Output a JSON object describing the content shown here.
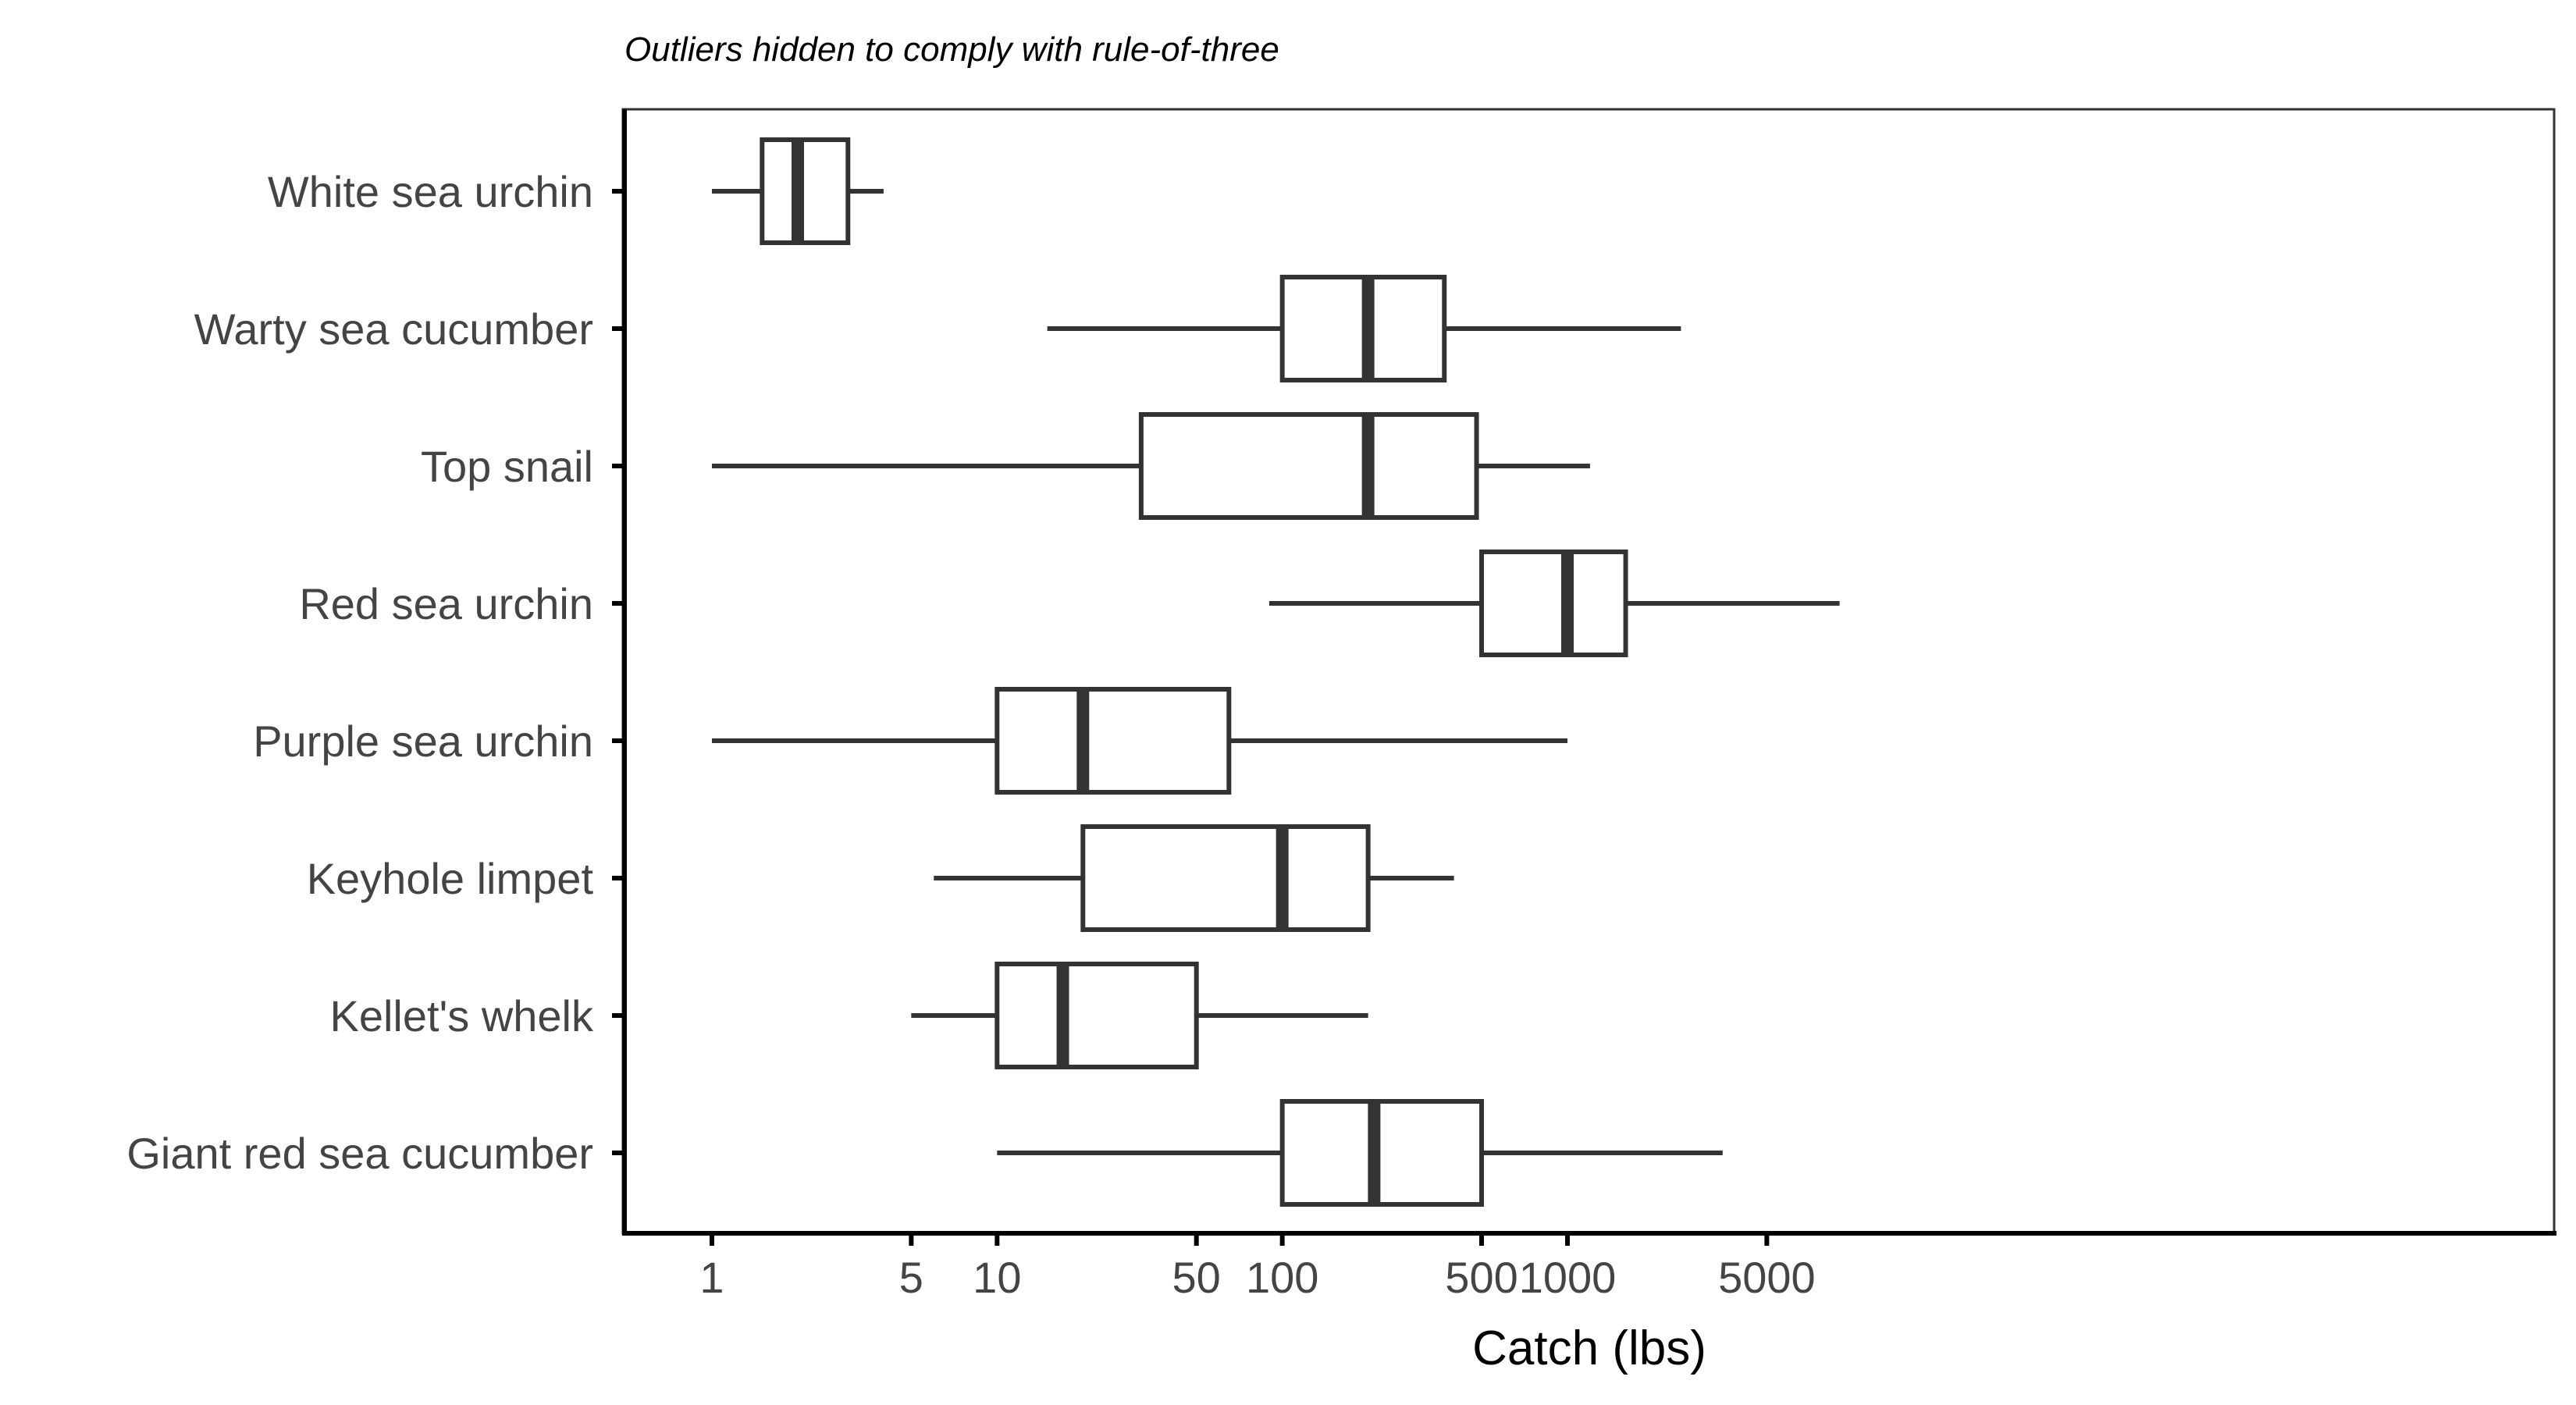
{
  "chart_data": {
    "type": "boxplot",
    "subtitle": "Outliers hidden to comply with rule-of-three",
    "xlabel": "Catch (lbs)",
    "ylabel": "",
    "x_scale": "log10",
    "xlim": [
      0.5,
      40000
    ],
    "x_ticks": [
      1,
      5,
      10,
      50,
      100,
      500,
      1000,
      5000
    ],
    "x_tick_labels": [
      "1",
      "5",
      "10",
      "50",
      "100",
      "500",
      "1000",
      "5000"
    ],
    "grid": false,
    "legend": "none",
    "categories": [
      "White sea urchin",
      "Warty sea cucumber",
      "Top snail",
      "Red sea urchin",
      "Purple sea urchin",
      "Keyhole limpet",
      "Kellet's whelk",
      "Giant red sea cucumber"
    ],
    "boxes": [
      {
        "label": "White sea urchin",
        "whisker_low": 1,
        "q1": 1.5,
        "median": 2,
        "q3": 3,
        "whisker_high": 4
      },
      {
        "label": "Warty sea cucumber",
        "whisker_low": 15,
        "q1": 100,
        "median": 200,
        "q3": 370,
        "whisker_high": 2500
      },
      {
        "label": "Top snail",
        "whisker_low": 1,
        "q1": 32,
        "median": 200,
        "q3": 480,
        "whisker_high": 1200
      },
      {
        "label": "Red sea urchin",
        "whisker_low": 90,
        "q1": 500,
        "median": 1000,
        "q3": 1600,
        "whisker_high": 9000
      },
      {
        "label": "Purple sea urchin",
        "whisker_low": 1,
        "q1": 10,
        "median": 20,
        "q3": 65,
        "whisker_high": 1000
      },
      {
        "label": "Keyhole limpet",
        "whisker_low": 6,
        "q1": 20,
        "median": 100,
        "q3": 200,
        "whisker_high": 400
      },
      {
        "label": "Kellet's whelk",
        "whisker_low": 5,
        "q1": 10,
        "median": 17,
        "q3": 50,
        "whisker_high": 200
      },
      {
        "label": "Giant red sea cucumber",
        "whisker_low": 10,
        "q1": 100,
        "median": 210,
        "q3": 500,
        "whisker_high": 3500
      }
    ],
    "colors": {
      "box_stroke": "#333333",
      "axis": "#000000",
      "tick_label": "#444444",
      "background": "#ffffff"
    }
  }
}
